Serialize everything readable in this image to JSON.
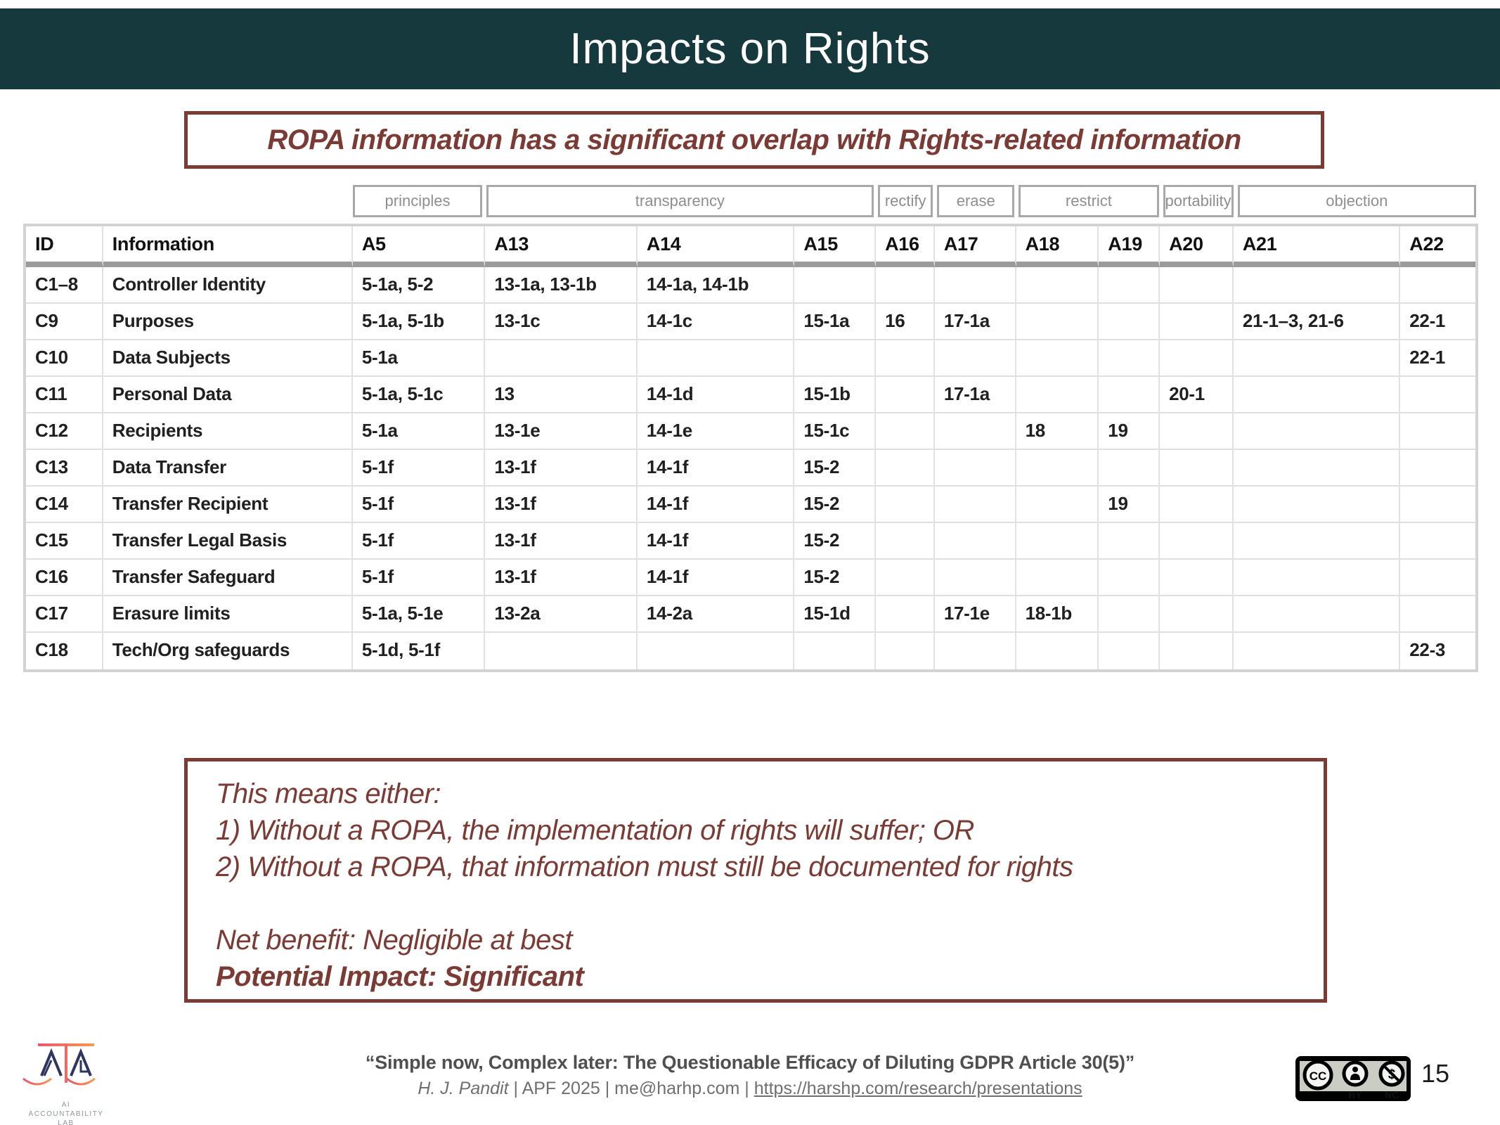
{
  "slide": {
    "title": "Impacts on Rights",
    "page_number": "15"
  },
  "highlight_box": {
    "text": "ROPA information has a significant overlap with Rights-related information"
  },
  "table": {
    "group_headers": [
      {
        "label": "principles",
        "start": 3,
        "span": 1
      },
      {
        "label": "transparency",
        "start": 4,
        "span": 3
      },
      {
        "label": "rectify",
        "start": 7,
        "span": 1
      },
      {
        "label": "erase",
        "start": 8,
        "span": 1
      },
      {
        "label": "restrict",
        "start": 9,
        "span": 2
      },
      {
        "label": "portability",
        "start": 11,
        "span": 1
      },
      {
        "label": "objection",
        "start": 12,
        "span": 2
      }
    ],
    "columns": [
      "ID",
      "Information",
      "A5",
      "A13",
      "A14",
      "A15",
      "A16",
      "A17",
      "A18",
      "A19",
      "A20",
      "A21",
      "A22"
    ],
    "rows": [
      [
        "C1–8",
        "Controller Identity",
        "5-1a, 5-2",
        "13-1a, 13-1b",
        "14-1a, 14-1b",
        "",
        "",
        "",
        "",
        "",
        "",
        "",
        ""
      ],
      [
        "C9",
        "Purposes",
        "5-1a, 5-1b",
        "13-1c",
        "14-1c",
        "15-1a",
        "16",
        "17-1a",
        "",
        "",
        "",
        "21-1–3, 21-6",
        "22-1"
      ],
      [
        "C10",
        "Data Subjects",
        "5-1a",
        "",
        "",
        "",
        "",
        "",
        "",
        "",
        "",
        "",
        "22-1"
      ],
      [
        "C11",
        "Personal Data",
        "5-1a, 5-1c",
        "13",
        "14-1d",
        "15-1b",
        "",
        "17-1a",
        "",
        "",
        "20-1",
        "",
        ""
      ],
      [
        "C12",
        "Recipients",
        "5-1a",
        "13-1e",
        "14-1e",
        "15-1c",
        "",
        "",
        "18",
        "19",
        "",
        "",
        ""
      ],
      [
        "C13",
        "Data Transfer",
        "5-1f",
        "13-1f",
        "14-1f",
        "15-2",
        "",
        "",
        "",
        "",
        "",
        "",
        ""
      ],
      [
        "C14",
        "Transfer Recipient",
        "5-1f",
        "13-1f",
        "14-1f",
        "15-2",
        "",
        "",
        "",
        "19",
        "",
        "",
        ""
      ],
      [
        "C15",
        "Transfer Legal Basis",
        "5-1f",
        "13-1f",
        "14-1f",
        "15-2",
        "",
        "",
        "",
        "",
        "",
        "",
        ""
      ],
      [
        "C16",
        "Transfer Safeguard",
        "5-1f",
        "13-1f",
        "14-1f",
        "15-2",
        "",
        "",
        "",
        "",
        "",
        "",
        ""
      ],
      [
        "C17",
        "Erasure limits",
        "5-1a, 5-1e",
        "13-2a",
        "14-2a",
        "15-1d",
        "",
        "17-1e",
        "18-1b",
        "",
        "",
        "",
        ""
      ],
      [
        "C18",
        "Tech/Org safeguards",
        "5-1d, 5-1f",
        "",
        "",
        "",
        "",
        "",
        "",
        "",
        "",
        "",
        "22-3"
      ]
    ]
  },
  "conclusion_box": {
    "lines": [
      {
        "text": "This means either:",
        "bold": false
      },
      {
        "text": "1) Without a ROPA, the implementation of rights will suffer; OR",
        "bold": false
      },
      {
        "text": "2) Without a ROPA, that information must still be documented for rights",
        "bold": false
      },
      {
        "text": "",
        "bold": false
      },
      {
        "text": "Net benefit: Negligible at best",
        "bold": false
      },
      {
        "text": "Potential Impact: Significant",
        "bold": true
      }
    ]
  },
  "footer": {
    "citation_title": "“Simple now, Complex later: The Questionable Efficacy of Diluting GDPR Article 30(5)”",
    "author": "H. J. Pandit",
    "credit_middle": " | APF 2025 | me@harhp.com | ",
    "link": "https://harshp.com/research/presentations",
    "logo_lines": [
      "AI",
      "ACCOUNTABILITY",
      "LAB"
    ],
    "license": {
      "cc": "CC",
      "by": "BY",
      "nc": "NC",
      "nc_symbol": "$"
    },
    "page_number": "15"
  },
  "colors": {
    "header_bg": "#16393E",
    "accent_maroon": "#7B3B34",
    "table_outer_border": "#D3D3D3",
    "table_header_rule": "#9B9B9B",
    "group_header_text": "#8E8E8E"
  }
}
